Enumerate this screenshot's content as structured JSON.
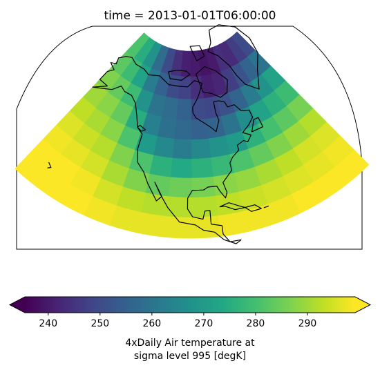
{
  "chart_data": {
    "type": "heatmap",
    "title": "time = 2013-01-01T06:00:00",
    "projection": "Lambert conformal (North America)",
    "variable": "air",
    "colormap": "viridis",
    "colorbar": {
      "orientation": "horizontal",
      "extend": "both",
      "vmin": 235.5,
      "vmax": 299.2,
      "ticks": [
        240,
        250,
        260,
        270,
        280,
        290
      ],
      "tick_labels": [
        "240",
        "250",
        "260",
        "270",
        "280",
        "290"
      ],
      "label_line1": "4xDaily Air temperature at",
      "label_line2": "sigma level 995 [degK]"
    },
    "coastlines": true,
    "grid": {
      "lat": [
        75.0,
        67.5,
        60.0,
        52.5,
        45.0,
        37.5,
        30.0,
        22.5,
        15.0
      ],
      "lon": [
        200,
        210,
        220,
        230,
        240,
        250,
        260,
        270,
        280,
        290,
        300,
        310,
        320,
        330
      ],
      "air_degK": [
        [
          281,
          275,
          268,
          258,
          250,
          244,
          241,
          240,
          239,
          240,
          244,
          243,
          247,
          250
        ],
        [
          283,
          279,
          272,
          262,
          255,
          250,
          248,
          244,
          241,
          242,
          247,
          252,
          256,
          260
        ],
        [
          287,
          284,
          279,
          268,
          260,
          258,
          255,
          250,
          249,
          251,
          256,
          262,
          268,
          272
        ],
        [
          290,
          288,
          284,
          275,
          263,
          259,
          257,
          255,
          256,
          260,
          266,
          272,
          276,
          279
        ],
        [
          293,
          291,
          288,
          281,
          270,
          265,
          262,
          265,
          268,
          270,
          276,
          280,
          283,
          286
        ],
        [
          296,
          294,
          292,
          287,
          281,
          276,
          274,
          276,
          278,
          281,
          284,
          287,
          290,
          292
        ],
        [
          298,
          297,
          295,
          291,
          287,
          284,
          285,
          286,
          288,
          289,
          291,
          293,
          295,
          296
        ],
        [
          299,
          299,
          298,
          295,
          293,
          292,
          292,
          292,
          293,
          294,
          295,
          296,
          297,
          298
        ],
        [
          299,
          299,
          299,
          298,
          297,
          297,
          297,
          297,
          298,
          298,
          298,
          299,
          299,
          299
        ]
      ]
    }
  }
}
